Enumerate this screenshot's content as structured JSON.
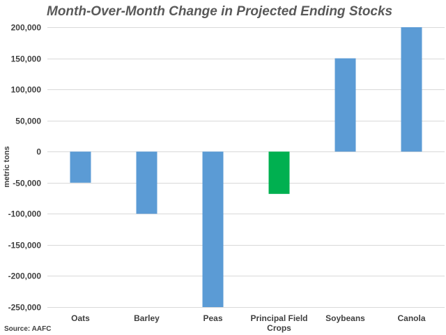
{
  "chart_data": {
    "type": "bar",
    "title": "Month-Over-Month Change in Projected Ending Stocks",
    "ylabel": "metric tons",
    "xlabel": "",
    "categories": [
      "Oats",
      "Barley",
      "Peas",
      "Principal Field Crops",
      "Soybeans",
      "Canola"
    ],
    "values": [
      -50000,
      -100000,
      -250000,
      -68000,
      150000,
      200000
    ],
    "colors": [
      "#5b9bd5",
      "#5b9bd5",
      "#5b9bd5",
      "#00b050",
      "#5b9bd5",
      "#5b9bd5"
    ],
    "ylim": [
      -250000,
      200000
    ],
    "yticks": [
      200000,
      150000,
      100000,
      50000,
      0,
      -50000,
      -100000,
      -150000,
      -200000,
      -250000
    ],
    "ytick_labels": [
      "200,000",
      "150,000",
      "100,000",
      "50,000",
      "0",
      "-50,000",
      "-100,000",
      "-150,000",
      "-200,000",
      "-250,000"
    ],
    "grid": true,
    "source": "Source: AAFC"
  }
}
